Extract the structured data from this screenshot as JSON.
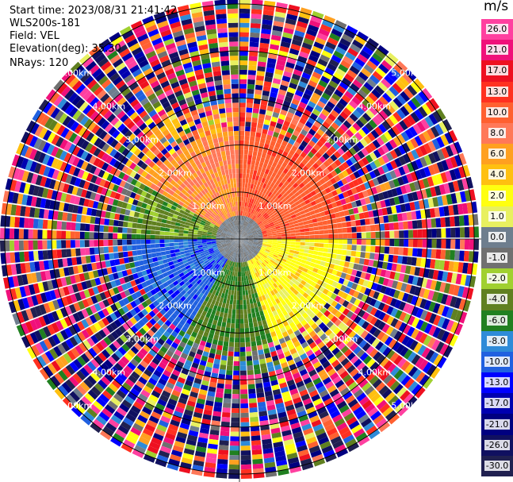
{
  "header": {
    "start_time": "Start time: 2023/08/31 21:41:42",
    "instrument": "WLS200s-181",
    "field": "Field: VEL",
    "elevation": "Elevation(deg): 35.30",
    "nrays": "NRays: 120"
  },
  "colorbar": {
    "title": "m/s",
    "ticks": [
      "26.0",
      "21.0",
      "17.0",
      "13.0",
      "10.0",
      "8.0",
      "6.0",
      "4.0",
      "2.0",
      "1.0",
      "0.0",
      "-1.0",
      "-2.0",
      "-4.0",
      "-6.0",
      "-8.0",
      "-10.0",
      "-13.0",
      "-17.0",
      "-21.0",
      "-26.0",
      "-30.0"
    ],
    "colors": [
      "#ff40a0",
      "#f0107a",
      "#ee1020",
      "#ff3020",
      "#ff6030",
      "#ff7858",
      "#ffa020",
      "#ffc010",
      "#ffff10",
      "#e8f060",
      "#6e7e8e",
      "#707070",
      "#a0d030",
      "#608020",
      "#208020",
      "#2e8bd8",
      "#2060e0",
      "#0000ff",
      "#0000b0",
      "#000080",
      "#101060",
      "#202050"
    ]
  },
  "chart_data": {
    "type": "ppi",
    "title": "",
    "field": "VEL",
    "units": "m/s",
    "elevation_deg": 35.3,
    "nrays": 120,
    "range_rings_km": [
      1.0,
      2.0,
      3.0,
      4.0,
      5.0
    ],
    "ring_label_text": [
      "1.00km",
      "2.00km",
      "3.00km",
      "4.00km",
      "5.00km"
    ],
    "max_range_km": 5.1,
    "vmin": -30.0,
    "vmax": 30.0,
    "sectors": [
      {
        "az_from": 300,
        "az_to": 360,
        "velocity_ms": 8.0
      },
      {
        "az_from": 0,
        "az_to": 90,
        "velocity_ms": 12.0
      },
      {
        "az_from": 90,
        "az_to": 160,
        "velocity_ms": 3.0
      },
      {
        "az_from": 160,
        "az_to": 210,
        "velocity_ms": -4.0
      },
      {
        "az_from": 210,
        "az_to": 270,
        "velocity_ms": -9.0
      },
      {
        "az_from": 270,
        "az_to": 300,
        "velocity_ms": -3.0
      }
    ],
    "valid_range_km": 2.3
  }
}
